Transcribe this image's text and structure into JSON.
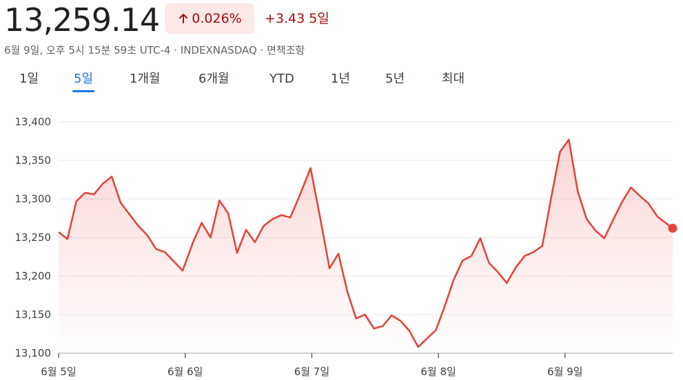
{
  "header": {
    "price": "13,259.14",
    "percent_change": "0.026%",
    "abs_change": "+3.43",
    "period_label": "5일",
    "meta": "6월 9일, 오후 5시 15분 59초 UTC-4 · INDEXNASDAQ · 면책조항",
    "accent_color": "#a50e0e",
    "badge_bg": "#fce8e6"
  },
  "tabs": [
    {
      "label": "1일",
      "active": false
    },
    {
      "label": "5일",
      "active": true
    },
    {
      "label": "1개월",
      "active": false
    },
    {
      "label": "6개월",
      "active": false
    },
    {
      "label": "YTD",
      "active": false
    },
    {
      "label": "1년",
      "active": false
    },
    {
      "label": "5년",
      "active": false
    },
    {
      "label": "최대",
      "active": false
    }
  ],
  "chart_data": {
    "type": "area",
    "line_color": "#e2453c",
    "ylim": [
      13100,
      13400
    ],
    "yticks": [
      "13,400",
      "13,350",
      "13,300",
      "13,250",
      "13,200",
      "13,150",
      "13,100"
    ],
    "ytick_values": [
      13400,
      13350,
      13300,
      13250,
      13200,
      13150,
      13100
    ],
    "xlim": [
      0,
      4.85
    ],
    "xticks": [
      {
        "label": "6월 5일",
        "x": 0
      },
      {
        "label": "6월 6일",
        "x": 1
      },
      {
        "label": "6월 7일",
        "x": 2
      },
      {
        "label": "6월 8일",
        "x": 3
      },
      {
        "label": "6월 9일",
        "x": 4
      }
    ],
    "grid": true,
    "series": [
      {
        "values": [
          [
            0.0,
            13257
          ],
          [
            0.07,
            13248
          ],
          [
            0.14,
            13297
          ],
          [
            0.21,
            13308
          ],
          [
            0.28,
            13306
          ],
          [
            0.35,
            13320
          ],
          [
            0.42,
            13329
          ],
          [
            0.49,
            13295
          ],
          [
            0.56,
            13280
          ],
          [
            0.63,
            13265
          ],
          [
            0.7,
            13253
          ],
          [
            0.77,
            13235
          ],
          [
            0.84,
            13231
          ],
          [
            0.91,
            13219
          ],
          [
            0.98,
            13207
          ],
          [
            1.06,
            13243
          ],
          [
            1.13,
            13269
          ],
          [
            1.2,
            13250
          ],
          [
            1.27,
            13298
          ],
          [
            1.34,
            13281
          ],
          [
            1.41,
            13230
          ],
          [
            1.48,
            13260
          ],
          [
            1.55,
            13244
          ],
          [
            1.62,
            13265
          ],
          [
            1.69,
            13274
          ],
          [
            1.76,
            13279
          ],
          [
            1.83,
            13276
          ],
          [
            1.9,
            13303
          ],
          [
            1.99,
            13340
          ],
          [
            2.07,
            13272
          ],
          [
            2.14,
            13210
          ],
          [
            2.21,
            13229
          ],
          [
            2.28,
            13180
          ],
          [
            2.35,
            13145
          ],
          [
            2.42,
            13150
          ],
          [
            2.49,
            13132
          ],
          [
            2.56,
            13135
          ],
          [
            2.63,
            13149
          ],
          [
            2.7,
            13142
          ],
          [
            2.77,
            13129
          ],
          [
            2.84,
            13108
          ],
          [
            2.91,
            13119
          ],
          [
            2.98,
            13130
          ],
          [
            3.05,
            13161
          ],
          [
            3.12,
            13195
          ],
          [
            3.19,
            13220
          ],
          [
            3.26,
            13226
          ],
          [
            3.33,
            13249
          ],
          [
            3.4,
            13217
          ],
          [
            3.47,
            13205
          ],
          [
            3.54,
            13191
          ],
          [
            3.61,
            13211
          ],
          [
            3.68,
            13226
          ],
          [
            3.75,
            13231
          ],
          [
            3.82,
            13239
          ],
          [
            3.89,
            13301
          ],
          [
            3.96,
            13361
          ],
          [
            4.03,
            13377
          ],
          [
            4.1,
            13310
          ],
          [
            4.17,
            13274
          ],
          [
            4.24,
            13259
          ],
          [
            4.31,
            13249
          ],
          [
            4.38,
            13273
          ],
          [
            4.45,
            13296
          ],
          [
            4.52,
            13315
          ],
          [
            4.59,
            13304
          ],
          [
            4.66,
            13294
          ],
          [
            4.73,
            13277
          ],
          [
            4.85,
            13262
          ]
        ]
      }
    ]
  }
}
